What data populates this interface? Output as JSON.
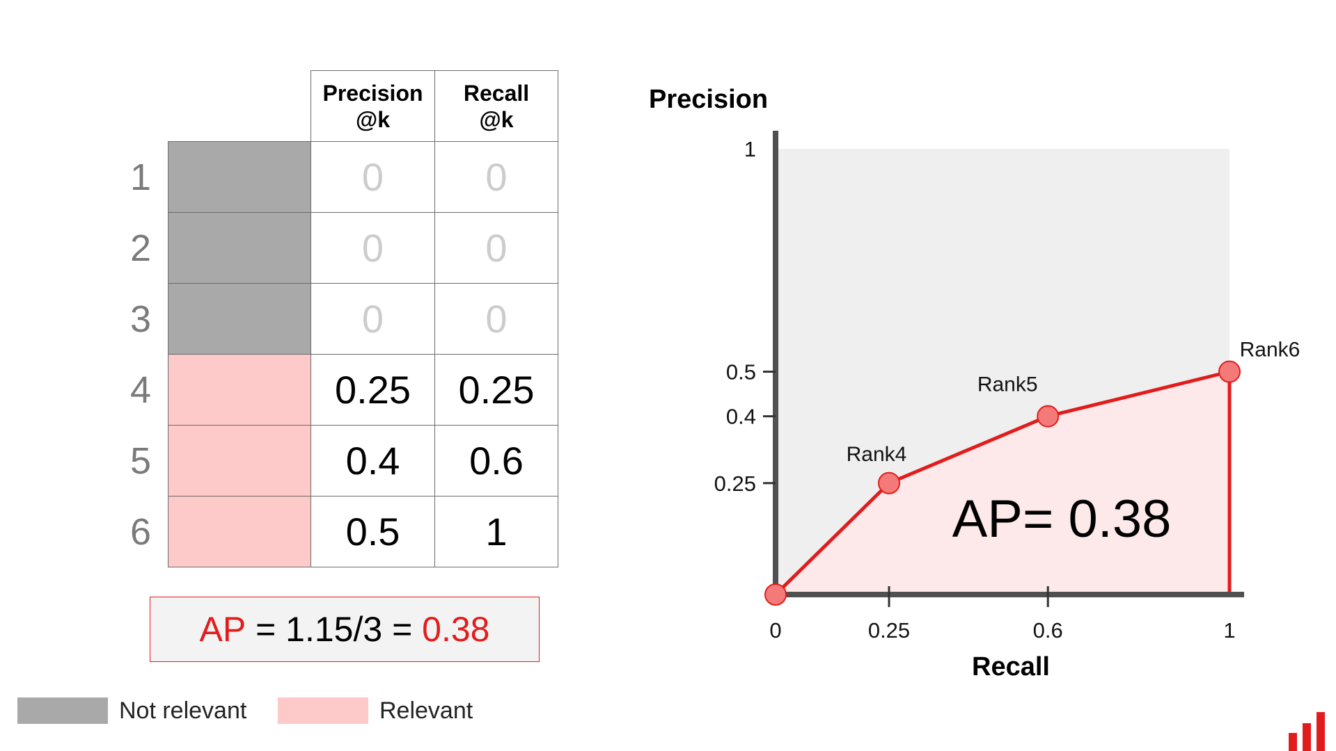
{
  "table": {
    "headers": [
      "Precision\n@k",
      "Recall\n@k"
    ],
    "rows": [
      {
        "rank": "1",
        "relevant": false,
        "precision": "0",
        "recall": "0"
      },
      {
        "rank": "2",
        "relevant": false,
        "precision": "0",
        "recall": "0"
      },
      {
        "rank": "3",
        "relevant": false,
        "precision": "0",
        "recall": "0"
      },
      {
        "rank": "4",
        "relevant": true,
        "precision": "0.25",
        "recall": "0.25"
      },
      {
        "rank": "5",
        "relevant": true,
        "precision": "0.4",
        "recall": "0.6"
      },
      {
        "rank": "6",
        "relevant": true,
        "precision": "0.5",
        "recall": "1"
      }
    ]
  },
  "formula": {
    "lhs": "AP",
    "middle": " = 1.15/3 = ",
    "result": "0.38"
  },
  "legend": {
    "not_relevant": "Not relevant",
    "relevant": "Relevant"
  },
  "colors": {
    "not_relevant": "#a9a9aa",
    "relevant": "#fdc9c9",
    "accent": "#e21c1c",
    "point": "#f47a7a",
    "plot_bg": "#efefef",
    "area": "#fde9e9",
    "axis": "#505050"
  },
  "chart_data": {
    "type": "area",
    "ylabel": "Precision",
    "xlabel": "Recall",
    "annotation": "AP= 0.38",
    "x_ticks": [
      0,
      0.25,
      0.6,
      1
    ],
    "x_tick_labels": [
      "0",
      "0.25",
      "0.6",
      "1"
    ],
    "y_ticks": [
      0.25,
      0.4,
      0.5,
      1
    ],
    "y_tick_labels": [
      "0.25",
      "0.4",
      "0.5",
      "1"
    ],
    "x_range": [
      0,
      1
    ],
    "y_range": [
      0,
      1
    ],
    "points": [
      {
        "x": 0,
        "y": 0,
        "label": ""
      },
      {
        "x": 0.25,
        "y": 0.25,
        "label": "Rank4"
      },
      {
        "x": 0.6,
        "y": 0.4,
        "label": "Rank5"
      },
      {
        "x": 1,
        "y": 0.5,
        "label": "Rank6"
      }
    ]
  }
}
